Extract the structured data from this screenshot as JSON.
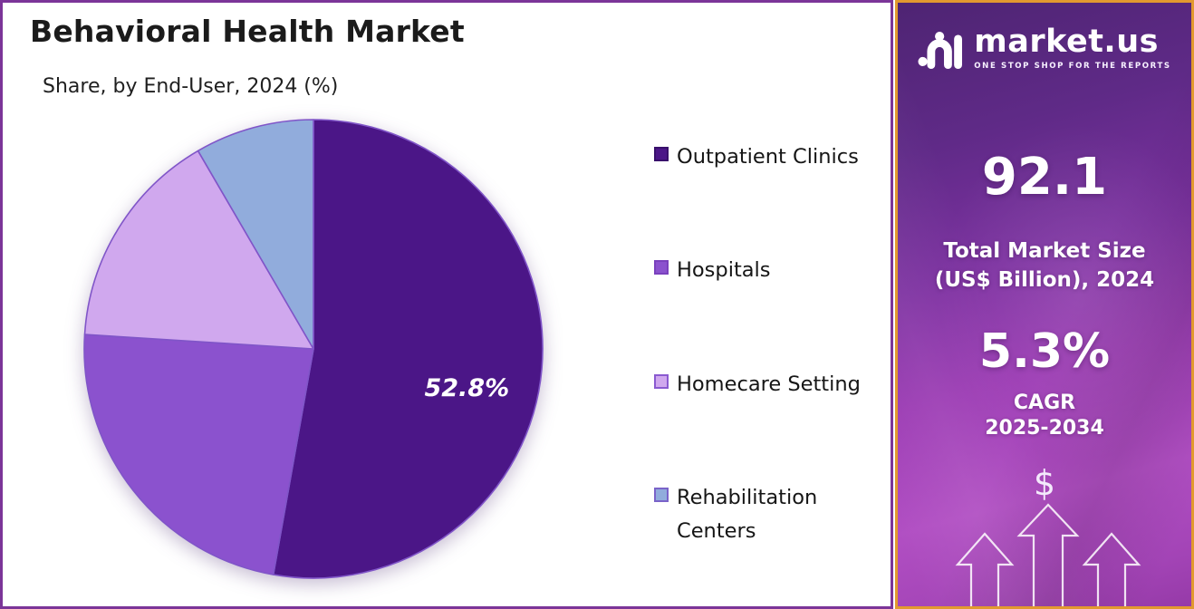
{
  "chart_data": {
    "type": "pie",
    "title": "Behavioral Health Market",
    "subtitle": "Share, by End-User, 2024 (%)",
    "unit": "%",
    "start_angle_deg": 0,
    "direction": "clockwise",
    "legend_position": "right",
    "slices": [
      {
        "label": "Outpatient Clinics",
        "value": 52.8,
        "color": "#4b1687",
        "marker_border": "#38106b",
        "data_label": "52.8%",
        "estimated": false
      },
      {
        "label": "Hospitals",
        "value": 23.2,
        "color": "#8b52ce",
        "marker_border": "#7a41bd",
        "data_label": null,
        "estimated": true
      },
      {
        "label": "Homecare Setting",
        "value": 15.6,
        "color": "#d0a8ee",
        "marker_border": "#8a5ad0",
        "data_label": null,
        "estimated": true
      },
      {
        "label": "Rehabilitation Centers",
        "value": 8.4,
        "color": "#91acdc",
        "marker_border": "#7a63c9",
        "data_label": null,
        "estimated": true
      }
    ]
  },
  "sidebar": {
    "brand": "market.us",
    "tagline": "ONE STOP SHOP FOR THE REPORTS",
    "market_size": {
      "value": "92.1",
      "label_line1": "Total Market Size",
      "label_line2": "(US$ Billion), 2024"
    },
    "cagr": {
      "value": "5.3%",
      "label_line1": "CAGR",
      "label_line2": "2025-2034"
    },
    "dollar_symbol": "$"
  },
  "colors": {
    "chart_border": "#7b3598",
    "panel_border": "#e2992f",
    "slice_stroke": "#8055c8",
    "panel_gradient_top": "#4e2473",
    "panel_gradient_bottom": "#b14fc3",
    "title_text": "#1b1b1b",
    "panel_text": "#ffffff"
  }
}
